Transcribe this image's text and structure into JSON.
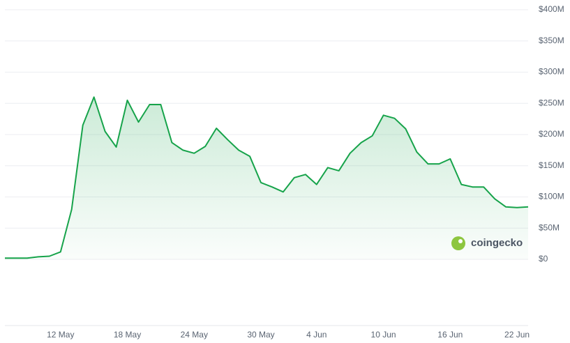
{
  "chart_data": {
    "type": "area",
    "categories": [
      null,
      null,
      null,
      null,
      null,
      "12 May",
      null,
      null,
      null,
      null,
      null,
      "18 May",
      null,
      null,
      null,
      null,
      null,
      "24 May",
      null,
      null,
      null,
      null,
      null,
      "30 May",
      null,
      null,
      null,
      null,
      "4 Jun",
      null,
      null,
      null,
      null,
      null,
      "10 Jun",
      null,
      null,
      null,
      null,
      null,
      "16 Jun",
      null,
      null,
      null,
      null,
      null,
      "22 Jun",
      null
    ],
    "values": [
      2,
      2,
      2,
      4,
      5,
      12,
      80,
      215,
      260,
      205,
      180,
      255,
      220,
      248,
      248,
      187,
      175,
      170,
      181,
      210,
      192,
      175,
      165,
      123,
      116,
      108,
      131,
      136,
      120,
      147,
      142,
      170,
      187,
      198,
      231,
      226,
      209,
      172,
      153,
      153,
      161,
      120,
      116,
      116,
      97,
      84,
      83,
      84
    ],
    "color": "#16a34a",
    "ylim": [
      0,
      400
    ],
    "yticks": [
      {
        "value": 0,
        "label": "$0"
      },
      {
        "value": 50,
        "label": "$50M"
      },
      {
        "value": 100,
        "label": "$100M"
      },
      {
        "value": 150,
        "label": "$150M"
      },
      {
        "value": 200,
        "label": "$200M"
      },
      {
        "value": 250,
        "label": "$250M"
      },
      {
        "value": 300,
        "label": "$300M"
      },
      {
        "value": 350,
        "label": "$350M"
      },
      {
        "value": 400,
        "label": "$400M"
      }
    ],
    "grid": true,
    "watermark": "coingecko"
  }
}
